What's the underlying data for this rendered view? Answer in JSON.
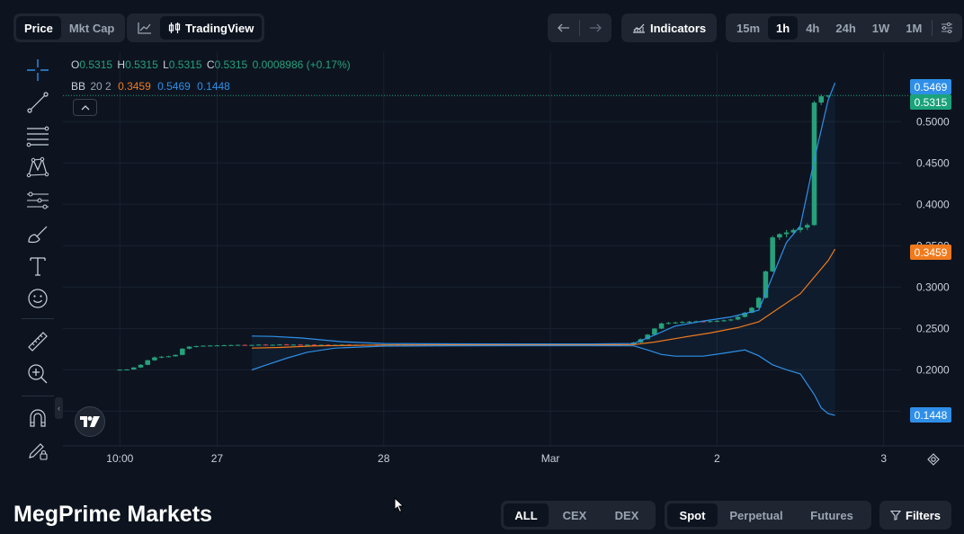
{
  "header": {
    "price_toggle": {
      "price": "Price",
      "mktcap": "Mkt Cap"
    },
    "chart_type": {
      "tradingview": "TradingView"
    },
    "indicators_label": "Indicators",
    "timeframes": [
      "15m",
      "1h",
      "4h",
      "24h",
      "1W",
      "1M"
    ],
    "active_timeframe": "1h"
  },
  "legend": {
    "ohlc": {
      "o_label": "O",
      "o_value": "0.5315",
      "h_label": "H",
      "h_value": "0.5315",
      "l_label": "L",
      "l_value": "0.5315",
      "c_label": "C",
      "c_value": "0.5315",
      "change": "0.0008986 (+0.17%)"
    },
    "bb": {
      "label": "BB",
      "params": "20 2",
      "mid": "0.3459",
      "upper": "0.5469",
      "lower": "0.1448"
    }
  },
  "price_tags": {
    "upper": "0.5469",
    "last": "0.5315",
    "mid": "0.3459",
    "lower": "0.1448"
  },
  "colors": {
    "up": "#26a17b",
    "down": "#e04a5a",
    "bb_upper": "#2f8fe8",
    "bb_lower": "#2f8fe8",
    "bb_mid": "#f07a1c",
    "last_price": "#1aa37a"
  },
  "footer": {
    "brand": "MegPrime Markets",
    "venue_tabs": [
      "ALL",
      "CEX",
      "DEX"
    ],
    "active_venue": "ALL",
    "market_tabs": [
      "Spot",
      "Perpetual",
      "Futures"
    ],
    "active_market": "Spot",
    "filters_label": "Filters"
  },
  "chart_data": {
    "type": "candlestick",
    "y_ticks": [
      "0.5000",
      "0.4500",
      "0.4000",
      "0.3500",
      "0.3000",
      "0.2500",
      "0.2000",
      "0.1500"
    ],
    "y_tick_values": [
      0.5,
      0.45,
      0.4,
      0.35,
      0.3,
      0.25,
      0.2,
      0.15
    ],
    "ylim": [
      0.108,
      0.584
    ],
    "x_ticks": [
      "10:00",
      "27",
      "28",
      "Mar",
      "2",
      "3"
    ],
    "x_tick_hours": [
      2,
      16,
      40,
      64,
      88,
      112
    ],
    "xlim": [
      -6.2,
      114.5
    ],
    "last_price": 0.5315,
    "candles_1h": [
      [
        2,
        0.2,
        0.2005,
        0.1996,
        0.2002
      ],
      [
        3,
        0.2002,
        0.2008,
        0.1998,
        0.2004
      ],
      [
        4,
        0.2004,
        0.2032,
        0.2,
        0.2028
      ],
      [
        5,
        0.2028,
        0.2068,
        0.2022,
        0.206
      ],
      [
        6,
        0.206,
        0.2122,
        0.2055,
        0.2115
      ],
      [
        7,
        0.2115,
        0.216,
        0.2108,
        0.215
      ],
      [
        8,
        0.215,
        0.2165,
        0.214,
        0.2158
      ],
      [
        9,
        0.2158,
        0.217,
        0.215,
        0.2163
      ],
      [
        10,
        0.2163,
        0.2185,
        0.2158,
        0.218
      ],
      [
        11,
        0.218,
        0.2262,
        0.2175,
        0.2255
      ],
      [
        12,
        0.2255,
        0.2285,
        0.2248,
        0.228
      ],
      [
        13,
        0.228,
        0.2292,
        0.2272,
        0.2286
      ],
      [
        14,
        0.2286,
        0.2296,
        0.228,
        0.2291
      ],
      [
        15,
        0.2291,
        0.2298,
        0.2284,
        0.2293
      ],
      [
        16,
        0.2293,
        0.23,
        0.2286,
        0.2295
      ],
      [
        17,
        0.2295,
        0.2302,
        0.2288,
        0.2297
      ],
      [
        18,
        0.2297,
        0.2304,
        0.229,
        0.2299
      ],
      [
        19,
        0.2299,
        0.2305,
        0.2291,
        0.2301
      ],
      [
        20,
        0.2301,
        0.2306,
        0.2293,
        0.2297
      ],
      [
        21,
        0.2297,
        0.2304,
        0.229,
        0.23
      ],
      [
        22,
        0.23,
        0.2308,
        0.2294,
        0.2304
      ],
      [
        23,
        0.2304,
        0.231,
        0.2296,
        0.2299
      ],
      [
        24,
        0.2299,
        0.2307,
        0.2292,
        0.2302
      ],
      [
        25,
        0.2302,
        0.231,
        0.2296,
        0.2306
      ],
      [
        26,
        0.2306,
        0.2312,
        0.2298,
        0.2301
      ],
      [
        27,
        0.2301,
        0.2308,
        0.2294,
        0.2304
      ],
      [
        28,
        0.2304,
        0.231,
        0.2296,
        0.23
      ],
      [
        29,
        0.23,
        0.2306,
        0.2292,
        0.2303
      ],
      [
        30,
        0.2303,
        0.2309,
        0.2295,
        0.2299
      ],
      [
        31,
        0.2299,
        0.2306,
        0.2291,
        0.2302
      ],
      [
        32,
        0.2302,
        0.2308,
        0.2294,
        0.2298
      ],
      [
        33,
        0.2298,
        0.2305,
        0.229,
        0.2301
      ],
      [
        34,
        0.2301,
        0.2308,
        0.2293,
        0.2304
      ],
      [
        35,
        0.2304,
        0.231,
        0.2296,
        0.23
      ],
      [
        36,
        0.23,
        0.2307,
        0.2292,
        0.2303
      ],
      [
        37,
        0.2303,
        0.2309,
        0.2295,
        0.2299
      ],
      [
        38,
        0.2299,
        0.2306,
        0.2291,
        0.2302
      ],
      [
        39,
        0.2302,
        0.2308,
        0.2294,
        0.2298
      ],
      [
        40,
        0.2298,
        0.2305,
        0.229,
        0.2301
      ],
      [
        41,
        0.2301,
        0.2308,
        0.2293,
        0.2305
      ],
      [
        42,
        0.2305,
        0.2311,
        0.2296,
        0.23
      ],
      [
        43,
        0.23,
        0.2306,
        0.2292,
        0.2303
      ],
      [
        44,
        0.2303,
        0.2309,
        0.2295,
        0.2299
      ],
      [
        45,
        0.2299,
        0.2306,
        0.2291,
        0.2302
      ],
      [
        46,
        0.2302,
        0.2308,
        0.2294,
        0.2298
      ],
      [
        47,
        0.2298,
        0.2305,
        0.229,
        0.2301
      ],
      [
        48,
        0.2301,
        0.2308,
        0.2293,
        0.2304
      ],
      [
        49,
        0.2304,
        0.231,
        0.2296,
        0.23
      ],
      [
        50,
        0.23,
        0.2307,
        0.2292,
        0.2303
      ],
      [
        51,
        0.2303,
        0.2309,
        0.2295,
        0.2299
      ],
      [
        52,
        0.2299,
        0.2306,
        0.2291,
        0.2302
      ],
      [
        53,
        0.2302,
        0.2308,
        0.2294,
        0.2298
      ],
      [
        54,
        0.2298,
        0.2305,
        0.229,
        0.2301
      ],
      [
        55,
        0.2301,
        0.2308,
        0.2293,
        0.2304
      ],
      [
        56,
        0.2304,
        0.231,
        0.2296,
        0.23
      ],
      [
        57,
        0.23,
        0.2306,
        0.2292,
        0.2303
      ],
      [
        58,
        0.2303,
        0.2309,
        0.2295,
        0.2299
      ],
      [
        59,
        0.2299,
        0.2306,
        0.2291,
        0.2302
      ],
      [
        60,
        0.2302,
        0.2308,
        0.2294,
        0.2298
      ],
      [
        61,
        0.2298,
        0.2305,
        0.229,
        0.2301
      ],
      [
        62,
        0.2301,
        0.2308,
        0.2293,
        0.2304
      ],
      [
        63,
        0.2304,
        0.231,
        0.2296,
        0.23
      ],
      [
        64,
        0.23,
        0.2306,
        0.2292,
        0.2303
      ],
      [
        65,
        0.2303,
        0.2309,
        0.2295,
        0.2299
      ],
      [
        66,
        0.2299,
        0.2306,
        0.2291,
        0.2302
      ],
      [
        67,
        0.2302,
        0.2308,
        0.2294,
        0.2298
      ],
      [
        68,
        0.2298,
        0.2305,
        0.229,
        0.2301
      ],
      [
        69,
        0.2301,
        0.2308,
        0.2293,
        0.2304
      ],
      [
        70,
        0.2304,
        0.231,
        0.2296,
        0.23
      ],
      [
        71,
        0.23,
        0.2306,
        0.2292,
        0.2303
      ],
      [
        72,
        0.2303,
        0.2309,
        0.2295,
        0.2299
      ],
      [
        73,
        0.2299,
        0.2306,
        0.2291,
        0.2302
      ],
      [
        74,
        0.2302,
        0.231,
        0.2294,
        0.2306
      ],
      [
        75,
        0.2306,
        0.2312,
        0.2298,
        0.2302
      ],
      [
        76,
        0.2302,
        0.2338,
        0.23,
        0.233
      ],
      [
        77,
        0.233,
        0.2378,
        0.2325,
        0.237
      ],
      [
        78,
        0.237,
        0.2432,
        0.2365,
        0.2425
      ],
      [
        79,
        0.2425,
        0.2505,
        0.242,
        0.2498
      ],
      [
        80,
        0.2498,
        0.257,
        0.249,
        0.256
      ],
      [
        81,
        0.256,
        0.258,
        0.2548,
        0.2566
      ],
      [
        82,
        0.2566,
        0.2582,
        0.2556,
        0.2572
      ],
      [
        83,
        0.2572,
        0.2588,
        0.2562,
        0.2578
      ],
      [
        84,
        0.2578,
        0.259,
        0.2566,
        0.2582
      ],
      [
        85,
        0.2582,
        0.2594,
        0.257,
        0.2586
      ],
      [
        86,
        0.2586,
        0.2596,
        0.2574,
        0.258
      ],
      [
        87,
        0.258,
        0.2594,
        0.2572,
        0.2588
      ],
      [
        88,
        0.2588,
        0.26,
        0.2576,
        0.2592
      ],
      [
        89,
        0.2592,
        0.2605,
        0.258,
        0.2598
      ],
      [
        90,
        0.2598,
        0.2615,
        0.2586,
        0.2608
      ],
      [
        91,
        0.2608,
        0.265,
        0.26,
        0.264
      ],
      [
        92,
        0.264,
        0.27,
        0.2632,
        0.269
      ],
      [
        93,
        0.269,
        0.276,
        0.2684,
        0.275
      ],
      [
        94,
        0.275,
        0.288,
        0.2745,
        0.287
      ],
      [
        95,
        0.287,
        0.32,
        0.286,
        0.319
      ],
      [
        96,
        0.319,
        0.362,
        0.318,
        0.36
      ],
      [
        97,
        0.36,
        0.365,
        0.357,
        0.364
      ],
      [
        98,
        0.364,
        0.369,
        0.36,
        0.366
      ],
      [
        99,
        0.366,
        0.371,
        0.363,
        0.369
      ],
      [
        100,
        0.369,
        0.374,
        0.366,
        0.372
      ],
      [
        101,
        0.372,
        0.377,
        0.369,
        0.375
      ],
      [
        102,
        0.375,
        0.525,
        0.374,
        0.523
      ],
      [
        103,
        0.523,
        0.533,
        0.52,
        0.5306
      ],
      [
        104,
        0.5306,
        0.532,
        0.529,
        0.5315
      ]
    ],
    "bb_upper": [
      [
        21,
        0.2408
      ],
      [
        24,
        0.2404
      ],
      [
        28,
        0.2385
      ],
      [
        34,
        0.234
      ],
      [
        40,
        0.2318
      ],
      [
        50,
        0.2313
      ],
      [
        60,
        0.2312
      ],
      [
        70,
        0.2312
      ],
      [
        76,
        0.2318
      ],
      [
        79,
        0.242
      ],
      [
        82,
        0.253
      ],
      [
        86,
        0.259
      ],
      [
        90,
        0.264
      ],
      [
        94,
        0.272
      ],
      [
        96,
        0.313
      ],
      [
        98,
        0.354
      ],
      [
        100,
        0.374
      ],
      [
        102,
        0.454
      ],
      [
        104,
        0.526
      ],
      [
        105,
        0.5469
      ]
    ],
    "bb_mid": [
      [
        21,
        0.2262
      ],
      [
        25,
        0.227
      ],
      [
        30,
        0.2288
      ],
      [
        40,
        0.23
      ],
      [
        50,
        0.2302
      ],
      [
        60,
        0.2302
      ],
      [
        70,
        0.2302
      ],
      [
        76,
        0.2305
      ],
      [
        79,
        0.2335
      ],
      [
        83,
        0.2392
      ],
      [
        87,
        0.2445
      ],
      [
        91,
        0.251
      ],
      [
        94,
        0.258
      ],
      [
        97,
        0.275
      ],
      [
        100,
        0.292
      ],
      [
        102,
        0.312
      ],
      [
        104,
        0.332
      ],
      [
        105,
        0.3459
      ]
    ],
    "bb_lower": [
      [
        21,
        0.1998
      ],
      [
        23,
        0.2056
      ],
      [
        26,
        0.214
      ],
      [
        29,
        0.2212
      ],
      [
        33,
        0.2262
      ],
      [
        40,
        0.2286
      ],
      [
        50,
        0.2291
      ],
      [
        60,
        0.2292
      ],
      [
        70,
        0.2292
      ],
      [
        76,
        0.229
      ],
      [
        78,
        0.224
      ],
      [
        80,
        0.2185
      ],
      [
        82,
        0.2165
      ],
      [
        86,
        0.2165
      ],
      [
        89,
        0.22
      ],
      [
        92,
        0.224
      ],
      [
        94,
        0.217
      ],
      [
        96,
        0.206
      ],
      [
        98,
        0.2
      ],
      [
        100,
        0.195
      ],
      [
        102,
        0.17
      ],
      [
        103,
        0.154
      ],
      [
        104,
        0.147
      ],
      [
        105,
        0.1448
      ]
    ]
  }
}
